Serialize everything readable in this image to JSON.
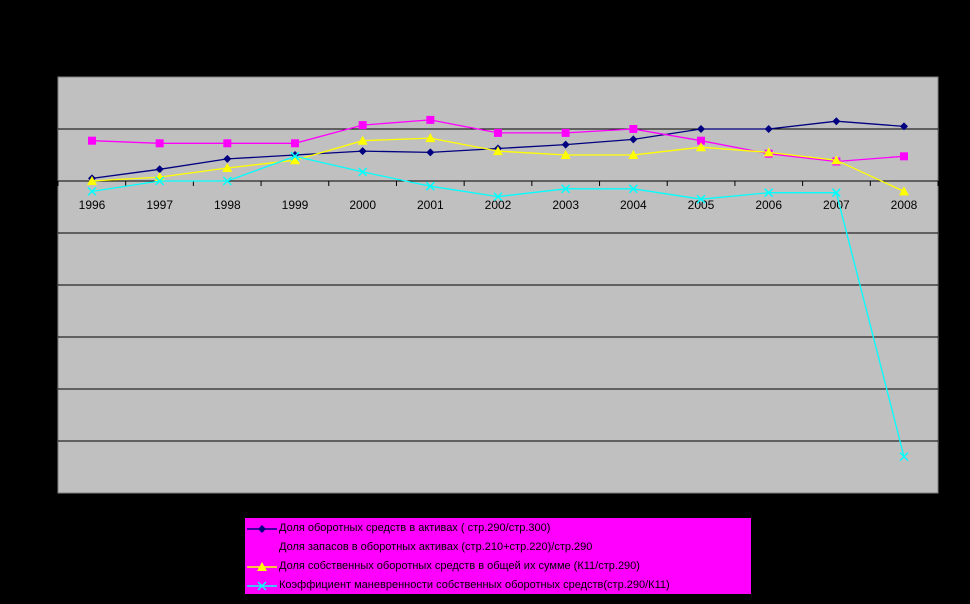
{
  "chart_data": {
    "type": "line",
    "x": [
      "1996",
      "1997",
      "1998",
      "1999",
      "2000",
      "2001",
      "2002",
      "2003",
      "2004",
      "2005",
      "2006",
      "2007",
      "2008"
    ],
    "ylim": [
      -1.2,
      0.4
    ],
    "grid": true,
    "legend_position": "bottom",
    "series": [
      {
        "name": "Доля оборотных средств в активах ( стр.290/стр.300)",
        "color": "#000080",
        "marker": "diamond",
        "values": [
          0.01,
          0.045,
          0.085,
          0.1,
          0.115,
          0.11,
          0.125,
          0.14,
          0.16,
          0.2,
          0.2,
          0.23,
          0.21
        ]
      },
      {
        "name": "Доля запасов в оборотных активах (стр.210+стр.220)/стр.290",
        "color": "#ff00ff",
        "marker": "square",
        "values": [
          0.155,
          0.145,
          0.145,
          0.145,
          0.215,
          0.235,
          0.185,
          0.185,
          0.2,
          0.155,
          0.105,
          0.075,
          0.095
        ]
      },
      {
        "name": "Доля собственных оборотных средств в общей их сумме (К11/стр.290)",
        "color": "#ffff00",
        "marker": "triangle",
        "values": [
          0.0,
          0.015,
          0.05,
          0.08,
          0.155,
          0.165,
          0.115,
          0.1,
          0.1,
          0.13,
          0.11,
          0.08,
          -0.04
        ]
      },
      {
        "name": "Коэффициент маневренности собственных оборотных средств(стр.290/К11)",
        "color": "#00ffff",
        "marker": "x",
        "values": [
          -0.04,
          0.0,
          0.0,
          0.095,
          0.035,
          -0.02,
          -0.06,
          -0.03,
          -0.03,
          -0.07,
          -0.045,
          -0.045,
          -1.06
        ]
      }
    ]
  }
}
